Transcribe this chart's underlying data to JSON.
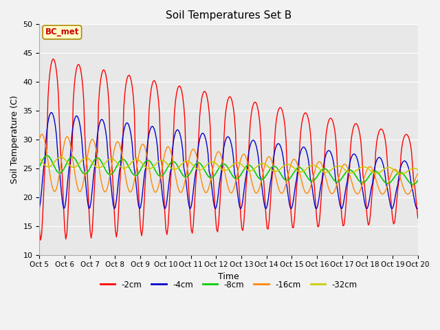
{
  "title": "Soil Temperatures Set B",
  "xlabel": "Time",
  "ylabel": "Soil Temperature (C)",
  "ylim": [
    10,
    50
  ],
  "yticks": [
    10,
    15,
    20,
    25,
    30,
    35,
    40,
    45,
    50
  ],
  "x_labels": [
    "Oct 5",
    "Oct 6",
    "Oct 7",
    "Oct 8",
    "Oct 9",
    "Oct 10",
    "Oct 11",
    "Oct 12",
    "Oct 13",
    "Oct 14",
    "Oct 15",
    "Oct 16",
    "Oct 17",
    "Oct 18",
    "Oct 19",
    "Oct 20"
  ],
  "legend_labels": [
    "-2cm",
    "-4cm",
    "-8cm",
    "-16cm",
    "-32cm"
  ],
  "legend_colors": [
    "#ff0000",
    "#0000cc",
    "#00cc00",
    "#ff8800",
    "#cccc00"
  ],
  "annotation_text": "BC_met",
  "annotation_color": "#cc0000",
  "fig_facecolor": "#f2f2f2",
  "ax_facecolor": "#e8e8e8",
  "grid_color": "#ffffff",
  "n_days": 15,
  "hours_per_day": 24
}
